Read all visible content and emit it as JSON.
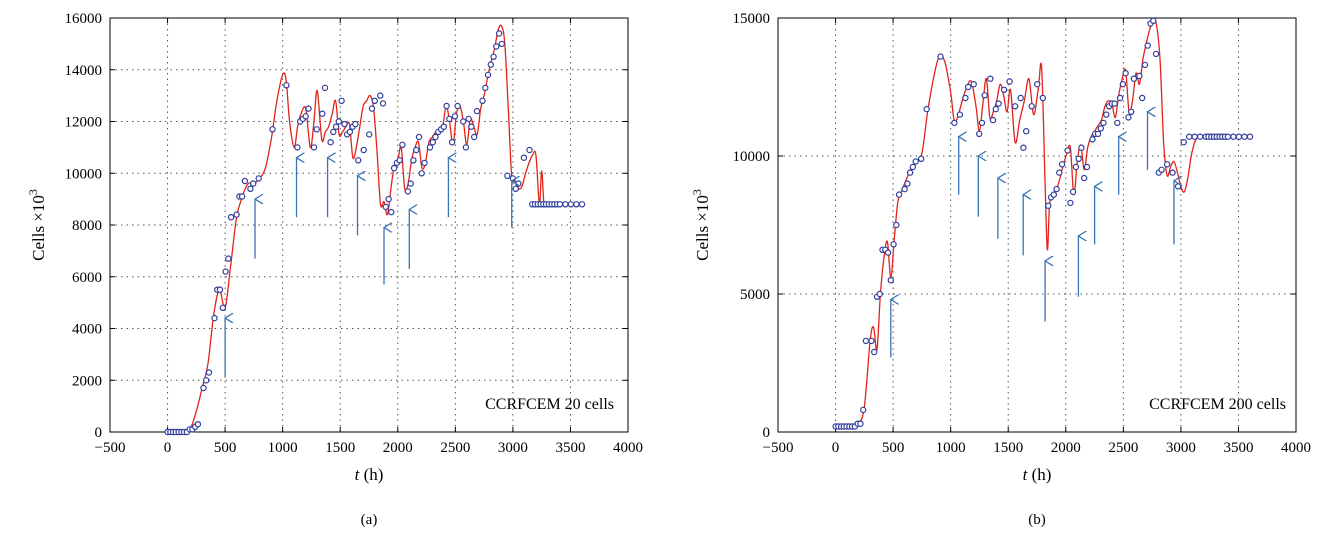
{
  "colors": {
    "fit_line": "#e2231a",
    "marker": "#2f3e9e",
    "arrow": "#3a74b4",
    "grid": "#555555"
  },
  "chart_data": [
    {
      "type": "line",
      "panel_label": "(a)",
      "annotation": "CCRFCEM 20 cells",
      "xlabel": "t (h)",
      "ylabel": "Cells ×10³",
      "xlim": [
        -500,
        4000
      ],
      "ylim": [
        0,
        16000
      ],
      "xticks": [
        -500,
        0,
        500,
        1000,
        1500,
        2000,
        2500,
        3000,
        3500,
        4000
      ],
      "yticks": [
        0,
        2000,
        4000,
        6000,
        8000,
        10000,
        12000,
        14000,
        16000
      ],
      "grid": true,
      "series": [
        {
          "kind": "markers",
          "x": [
            0,
            24,
            48,
            72,
            96,
            120,
            144,
            168,
            192,
            216,
            240,
            264,
            312,
            336,
            360,
            408,
            432,
            456,
            480,
            504,
            528,
            552,
            600,
            624,
            648,
            672,
            720,
            744,
            792,
            912,
            1032,
            1128,
            1152,
            1176,
            1200,
            1224,
            1272,
            1296,
            1344,
            1368,
            1416,
            1440,
            1464,
            1488,
            1512,
            1536,
            1560,
            1584,
            1608,
            1632,
            1656,
            1704,
            1752,
            1776,
            1800,
            1848,
            1872,
            1896,
            1920,
            1944,
            1968,
            1992,
            2016,
            2040,
            2088,
            2112,
            2136,
            2160,
            2184,
            2208,
            2232,
            2280,
            2304,
            2328,
            2352,
            2376,
            2400,
            2424,
            2448,
            2472,
            2496,
            2520,
            2568,
            2592,
            2616,
            2640,
            2664,
            2688,
            2736,
            2760,
            2784,
            2808,
            2832,
            2856,
            2880,
            2904,
            2952,
            3000,
            3024,
            3048,
            3096,
            3144,
            3168,
            3192,
            3216,
            3240,
            3264,
            3288,
            3312,
            3336,
            3360,
            3384,
            3408,
            3456,
            3504,
            3552,
            3600
          ],
          "y": [
            0,
            0,
            0,
            0,
            0,
            0,
            0,
            0,
            100,
            100,
            200,
            300,
            1700,
            2000,
            2300,
            4400,
            5500,
            5500,
            4800,
            6200,
            6700,
            8300,
            8400,
            9100,
            9100,
            9700,
            9400,
            9600,
            9800,
            11700,
            13400,
            11000,
            12000,
            12100,
            12200,
            12500,
            11000,
            11700,
            12300,
            13300,
            11200,
            11600,
            11800,
            12000,
            12800,
            11900,
            11500,
            11600,
            11800,
            11900,
            10500,
            10900,
            11500,
            12500,
            12800,
            13000,
            12700,
            8700,
            9000,
            8500,
            10200,
            10400,
            10500,
            11100,
            9300,
            9600,
            10500,
            10900,
            11400,
            10000,
            10400,
            11000,
            11200,
            11400,
            11600,
            11700,
            11800,
            12600,
            12100,
            11200,
            12200,
            12600,
            12000,
            11000,
            12100,
            11800,
            11400,
            12400,
            12800,
            13300,
            13800,
            14200,
            14500,
            14900,
            15400,
            15000,
            9900,
            9800,
            9400,
            9600,
            10600,
            10900,
            8800,
            8800,
            8800,
            8800,
            8800,
            8800,
            8800,
            8800,
            8800,
            8800,
            8800,
            8800,
            8800,
            8800,
            8800
          ]
        },
        {
          "kind": "fit",
          "x": [
            0,
            50,
            100,
            150,
            200,
            250,
            300,
            350,
            400,
            450,
            500,
            550,
            600,
            650,
            700,
            750,
            800,
            850,
            900,
            950,
            1000,
            1030,
            1060,
            1100,
            1130,
            1160,
            1200,
            1240,
            1270,
            1300,
            1340,
            1370,
            1400,
            1430,
            1460,
            1490,
            1520,
            1550,
            1580,
            1610,
            1640,
            1670,
            1700,
            1730,
            1760,
            1790,
            1820,
            1850,
            1880,
            1910,
            1940,
            1970,
            2000,
            2030,
            2060,
            2090,
            2120,
            2150,
            2180,
            2210,
            2240,
            2270,
            2300,
            2330,
            2360,
            2390,
            2420,
            2450,
            2480,
            2510,
            2540,
            2570,
            2600,
            2630,
            2660,
            2690,
            2720,
            2750,
            2780,
            2810,
            2840,
            2870,
            2900,
            2930,
            2960,
            2990,
            3020,
            3050,
            3080,
            3110,
            3140,
            3170,
            3200,
            3230,
            3250,
            3270,
            3290,
            3320,
            3360,
            3420,
            3480,
            3540,
            3600
          ],
          "y": [
            0,
            0,
            0,
            0,
            150,
            800,
            1700,
            2600,
            4500,
            5500,
            4800,
            6500,
            8300,
            9100,
            9600,
            9600,
            9800,
            10200,
            11300,
            12800,
            13800,
            13600,
            12000,
            11000,
            11800,
            12300,
            12500,
            11000,
            11900,
            13200,
            11300,
            11600,
            11800,
            12300,
            12800,
            11500,
            11600,
            11800,
            11900,
            10600,
            11000,
            11800,
            12600,
            12800,
            13000,
            12500,
            10800,
            8800,
            8900,
            8400,
            9400,
            10300,
            10500,
            11000,
            9400,
            9600,
            10500,
            11000,
            11200,
            10200,
            10400,
            11200,
            11400,
            11600,
            11700,
            11800,
            12600,
            12000,
            11100,
            12300,
            12600,
            12000,
            11100,
            12100,
            11800,
            11500,
            12500,
            13000,
            13700,
            14300,
            14800,
            15500,
            15700,
            15000,
            12500,
            9900,
            9700,
            9400,
            9500,
            10000,
            10400,
            10700,
            10700,
            8800,
            10100,
            8800,
            8800,
            8800,
            8800,
            8800,
            8800,
            8800,
            8800
          ]
        }
      ],
      "arrows": [
        {
          "x": 500,
          "y_tip": 4400,
          "y_tail": 2100
        },
        {
          "x": 760,
          "y_tip": 9000,
          "y_tail": 6700
        },
        {
          "x": 1120,
          "y_tip": 10600,
          "y_tail": 8300
        },
        {
          "x": 1390,
          "y_tip": 10600,
          "y_tail": 8300
        },
        {
          "x": 1650,
          "y_tip": 9900,
          "y_tail": 7600
        },
        {
          "x": 1880,
          "y_tip": 7900,
          "y_tail": 5700
        },
        {
          "x": 2100,
          "y_tip": 8600,
          "y_tail": 6300
        },
        {
          "x": 2440,
          "y_tip": 10600,
          "y_tail": 8300
        },
        {
          "x": 2990,
          "y_tip": 9700,
          "y_tail": 7900
        }
      ]
    },
    {
      "type": "line",
      "panel_label": "(b)",
      "annotation": "CCRFCEM 200 cells",
      "xlabel": "t (h)",
      "ylabel": "Cells ×10³",
      "xlim": [
        -500,
        4000
      ],
      "ylim": [
        0,
        15000
      ],
      "xticks": [
        -500,
        0,
        500,
        1000,
        1500,
        2000,
        2500,
        3000,
        3500,
        4000
      ],
      "yticks": [
        0,
        5000,
        10000,
        15000
      ],
      "grid": true,
      "series": [
        {
          "kind": "markers",
          "x": [
            0,
            24,
            48,
            72,
            96,
            120,
            144,
            168,
            192,
            216,
            240,
            264,
            312,
            336,
            360,
            384,
            408,
            432,
            456,
            480,
            504,
            528,
            552,
            600,
            624,
            648,
            672,
            696,
            744,
            792,
            912,
            1032,
            1080,
            1128,
            1152,
            1200,
            1248,
            1272,
            1296,
            1344,
            1368,
            1392,
            1416,
            1464,
            1512,
            1560,
            1608,
            1632,
            1656,
            1704,
            1752,
            1800,
            1848,
            1872,
            1896,
            1920,
            1944,
            1968,
            2016,
            2040,
            2064,
            2088,
            2112,
            2136,
            2160,
            2184,
            2232,
            2256,
            2280,
            2304,
            2328,
            2352,
            2376,
            2400,
            2424,
            2448,
            2472,
            2496,
            2520,
            2544,
            2568,
            2592,
            2640,
            2664,
            2688,
            2712,
            2736,
            2760,
            2784,
            2808,
            2832,
            2880,
            2928,
            2976,
            3024,
            3072,
            3120,
            3168,
            3216,
            3240,
            3264,
            3288,
            3312,
            3336,
            3360,
            3384,
            3408,
            3456,
            3504,
            3552,
            3600
          ],
          "y": [
            200,
            200,
            200,
            200,
            200,
            200,
            200,
            200,
            300,
            300,
            800,
            3300,
            3300,
            2900,
            4900,
            5000,
            6600,
            6600,
            6500,
            5500,
            6800,
            7500,
            8600,
            8800,
            9000,
            9400,
            9600,
            9800,
            9900,
            11700,
            13600,
            11200,
            11500,
            12100,
            12500,
            12600,
            10800,
            11200,
            12200,
            12800,
            11300,
            11700,
            11900,
            12400,
            12700,
            11800,
            12100,
            10300,
            10900,
            11800,
            12600,
            12100,
            8200,
            8500,
            8600,
            8800,
            9400,
            9700,
            10200,
            8300,
            8700,
            9600,
            9900,
            10300,
            9200,
            9600,
            10600,
            10800,
            10800,
            11000,
            11200,
            11500,
            11800,
            11900,
            11900,
            11200,
            12100,
            12600,
            13000,
            11400,
            11600,
            12800,
            12900,
            12100,
            13300,
            14000,
            14800,
            14900,
            13700,
            9400,
            9500,
            9700,
            9400,
            8900,
            10500,
            10700,
            10700,
            10700,
            10700,
            10700,
            10700,
            10700,
            10700,
            10700,
            10700,
            10700,
            10700,
            10700,
            10700,
            10700,
            10700
          ]
        },
        {
          "kind": "fit",
          "x": [
            0,
            50,
            100,
            150,
            200,
            250,
            300,
            330,
            360,
            390,
            420,
            450,
            480,
            510,
            540,
            570,
            600,
            650,
            700,
            750,
            800,
            850,
            900,
            950,
            1000,
            1030,
            1060,
            1100,
            1140,
            1180,
            1220,
            1250,
            1280,
            1310,
            1340,
            1370,
            1400,
            1430,
            1460,
            1490,
            1520,
            1560,
            1600,
            1640,
            1680,
            1720,
            1760,
            1790,
            1820,
            1840,
            1860,
            1890,
            1920,
            1950,
            1980,
            2010,
            2040,
            2070,
            2100,
            2130,
            2160,
            2190,
            2220,
            2250,
            2280,
            2310,
            2340,
            2370,
            2400,
            2430,
            2460,
            2490,
            2520,
            2550,
            2580,
            2610,
            2640,
            2670,
            2700,
            2730,
            2760,
            2790,
            2820,
            2850,
            2880,
            2910,
            2940,
            2970,
            3000,
            3030,
            3060,
            3090,
            3120,
            3150,
            3180,
            3210,
            3250,
            3300,
            3400,
            3500,
            3600
          ],
          "y": [
            200,
            200,
            200,
            200,
            300,
            900,
            3300,
            3800,
            3000,
            5000,
            6300,
            6900,
            5600,
            7000,
            8300,
            8700,
            9000,
            9500,
            9800,
            10100,
            11600,
            12800,
            13600,
            13400,
            12300,
            11300,
            11400,
            12000,
            12500,
            12700,
            11800,
            10900,
            11900,
            12800,
            11400,
            11600,
            12000,
            12600,
            12200,
            11600,
            12400,
            10500,
            11300,
            12000,
            12800,
            11500,
            12400,
            13200,
            9000,
            6600,
            8300,
            8600,
            8800,
            9200,
            9700,
            10100,
            10300,
            8600,
            9800,
            10400,
            9500,
            10300,
            10700,
            10900,
            11100,
            11300,
            11800,
            12000,
            11900,
            11400,
            12200,
            12800,
            13100,
            11600,
            12000,
            13000,
            12600,
            13500,
            14100,
            14600,
            14900,
            14700,
            13400,
            10500,
            9300,
            9600,
            9800,
            9400,
            8900,
            8700,
            9200,
            10000,
            10500,
            10700,
            10700,
            10700,
            10700,
            10700,
            10700,
            10700,
            10700
          ]
        }
      ],
      "arrows": [
        {
          "x": 480,
          "y_tip": 4800,
          "y_tail": 2700
        },
        {
          "x": 1070,
          "y_tip": 10700,
          "y_tail": 8600
        },
        {
          "x": 1240,
          "y_tip": 10000,
          "y_tail": 7800
        },
        {
          "x": 1410,
          "y_tip": 9200,
          "y_tail": 7000
        },
        {
          "x": 1630,
          "y_tip": 8600,
          "y_tail": 6400
        },
        {
          "x": 1820,
          "y_tip": 6200,
          "y_tail": 4000
        },
        {
          "x": 2110,
          "y_tip": 7100,
          "y_tail": 4900
        },
        {
          "x": 2250,
          "y_tip": 8900,
          "y_tail": 6800
        },
        {
          "x": 2460,
          "y_tip": 10700,
          "y_tail": 8600
        },
        {
          "x": 2710,
          "y_tip": 11600,
          "y_tail": 9500
        },
        {
          "x": 2940,
          "y_tip": 9100,
          "y_tail": 6800
        }
      ]
    }
  ]
}
